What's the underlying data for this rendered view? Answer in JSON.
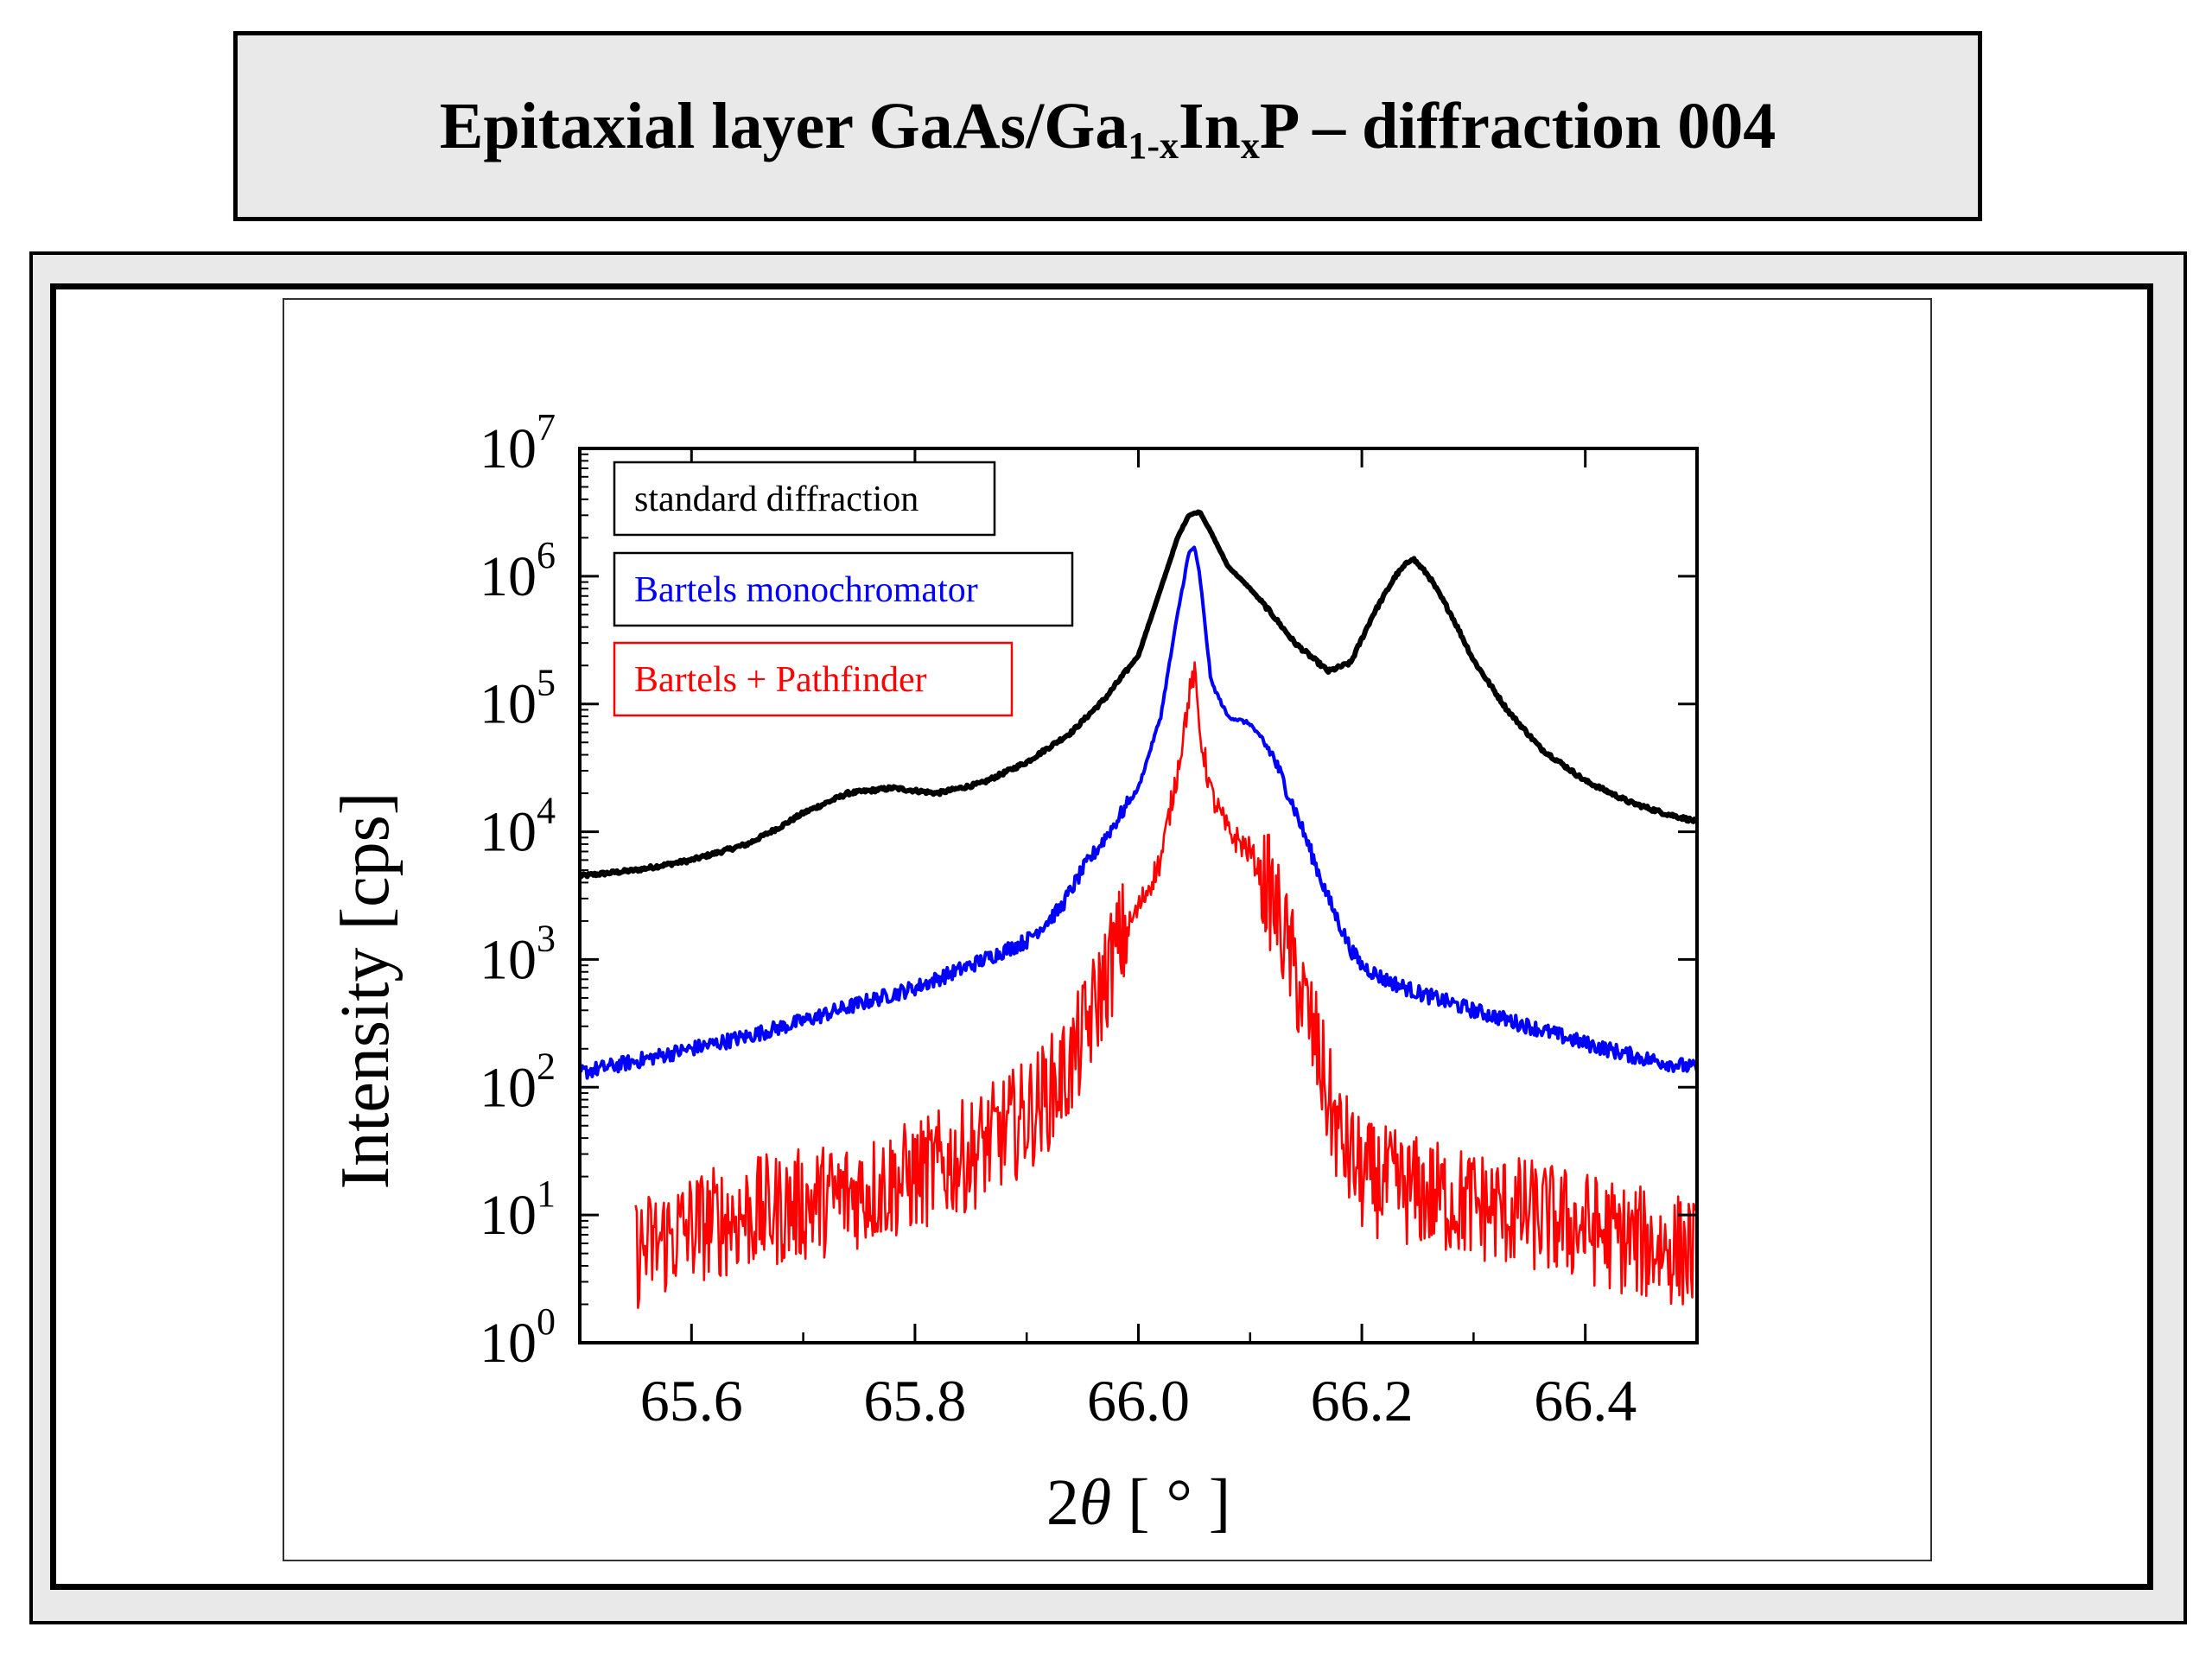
{
  "slide": {
    "title_main": "Epitaxial layer GaAs/Ga",
    "title_sub1": "1-x",
    "title_mid": "In",
    "title_sub2": "x",
    "title_end": "P – diffraction 004"
  },
  "chart_data": {
    "type": "line",
    "xlabel_prefix": "2",
    "xlabel_symbol": "θ",
    "xlabel_suffix": " [ ° ]",
    "ylabel": "Intensity [cps]",
    "xlim": [
      65.5,
      66.5
    ],
    "ylim": [
      1,
      10000000
    ],
    "yscale": "log",
    "grid": false,
    "legend_position": "top-left",
    "x_ticks": [
      "65.6",
      "65.8",
      "66.0",
      "66.2",
      "66.4"
    ],
    "x_tick_values": [
      65.6,
      65.8,
      66.0,
      66.2,
      66.4
    ],
    "y_ticks": [
      {
        "base": "10",
        "exp": "0",
        "value": 1
      },
      {
        "base": "10",
        "exp": "1",
        "value": 10
      },
      {
        "base": "10",
        "exp": "2",
        "value": 100
      },
      {
        "base": "10",
        "exp": "3",
        "value": 1000
      },
      {
        "base": "10",
        "exp": "4",
        "value": 10000
      },
      {
        "base": "10",
        "exp": "5",
        "value": 100000
      },
      {
        "base": "10",
        "exp": "6",
        "value": 1000000
      },
      {
        "base": "10",
        "exp": "7",
        "value": 10000000
      }
    ],
    "series": [
      {
        "name": "standard diffraction",
        "color": "#000000",
        "x": [
          65.5,
          65.55,
          65.6,
          65.65,
          65.68,
          65.7,
          65.74,
          65.78,
          65.82,
          65.86,
          65.9,
          65.94,
          65.97,
          66.0,
          66.02,
          66.035,
          66.045,
          66.055,
          66.065,
          66.08,
          66.1,
          66.12,
          66.14,
          66.17,
          66.19,
          66.21,
          66.23,
          66.245,
          66.26,
          66.28,
          66.3,
          66.33,
          66.36,
          66.4,
          66.44,
          66.47,
          66.5
        ],
        "y": [
          4500,
          5000,
          6000,
          8000,
          11000,
          14000,
          20000,
          22000,
          20000,
          24000,
          35000,
          60000,
          110000,
          240000,
          800000,
          2000000,
          3000000,
          3200000,
          2200000,
          1200000,
          800000,
          500000,
          300000,
          180000,
          210000,
          500000,
          1000000,
          1400000,
          1000000,
          500000,
          220000,
          90000,
          45000,
          25000,
          17000,
          14000,
          12000
        ]
      },
      {
        "name": "Bartels monochromator",
        "color": "#0000ff",
        "x": [
          65.5,
          65.55,
          65.6,
          65.65,
          65.7,
          65.75,
          65.8,
          65.85,
          65.9,
          65.93,
          65.95,
          65.98,
          66.0,
          66.02,
          66.035,
          66.045,
          66.05,
          66.055,
          66.065,
          66.08,
          66.1,
          66.12,
          66.14,
          66.17,
          66.19,
          66.2,
          66.22,
          66.25,
          66.3,
          66.35,
          66.4,
          66.45,
          66.5
        ],
        "y": [
          130,
          160,
          200,
          250,
          330,
          450,
          600,
          900,
          1400,
          2500,
          5000,
          12000,
          22000,
          80000,
          500000,
          1500000,
          1700000,
          1000000,
          150000,
          80000,
          70000,
          40000,
          15000,
          3000,
          1200,
          900,
          700,
          550,
          400,
          300,
          220,
          170,
          140
        ]
      },
      {
        "name": "Bartels + Pathfinder",
        "color": "#ff0000",
        "x": [
          65.55,
          65.6,
          65.65,
          65.7,
          65.75,
          65.8,
          65.85,
          65.88,
          65.9,
          65.92,
          65.94,
          65.96,
          65.98,
          66.0,
          66.02,
          66.035,
          66.045,
          66.05,
          66.055,
          66.065,
          66.08,
          66.1,
          66.12,
          66.14,
          66.16,
          66.17,
          66.18,
          66.2,
          66.25,
          66.3,
          66.35,
          66.4,
          66.45,
          66.5
        ],
        "y": [
          5,
          8,
          10,
          12,
          15,
          20,
          30,
          45,
          60,
          90,
          150,
          400,
          1200,
          2500,
          6000,
          30000,
          110000,
          180000,
          60000,
          20000,
          10000,
          7000,
          3000,
          800,
          200,
          80,
          40,
          20,
          15,
          12,
          10,
          8,
          6,
          5
        ]
      }
    ]
  }
}
